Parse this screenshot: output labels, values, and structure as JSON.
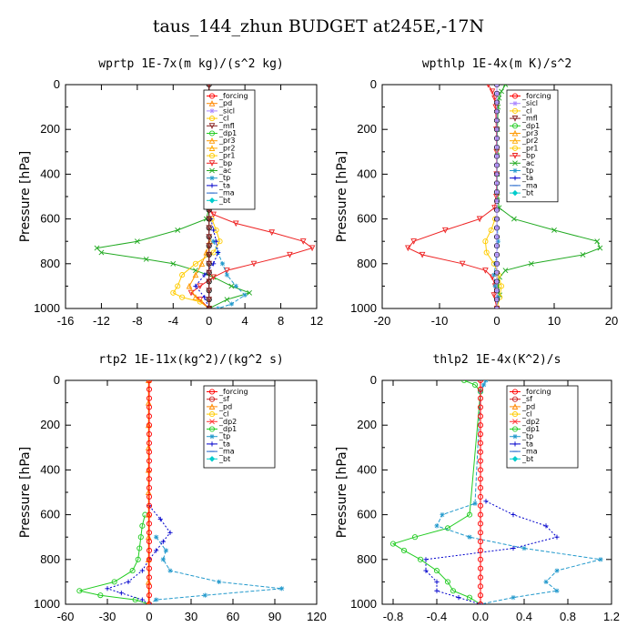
{
  "title": "taus_144_zhun  BUDGET at245E,-17N",
  "chart_data": [
    {
      "type": "line",
      "title": "wprtp  1E-7x(m kg)/(s^2 kg)",
      "ylabel": "Pressure [hPa]",
      "xlim": [
        -16,
        12
      ],
      "xticks": [
        "-16",
        "-12",
        "-8",
        "-4",
        "0",
        "4",
        "8",
        "12"
      ],
      "ylim": [
        1000,
        0
      ],
      "yticks": [
        "0",
        "200",
        "400",
        "600",
        "800",
        "1000"
      ],
      "legend": [
        "_forcing",
        "_pd",
        "_sicl",
        "_cl",
        "_mfl",
        "_dp1",
        "_pr3",
        "_pr2",
        "_pr1",
        "_bp",
        "_ac",
        "_tp",
        "_ta",
        "_ma",
        "_bt"
      ],
      "series": [
        {
          "name": "_ac",
          "color": "#22aa22",
          "marker": "x",
          "dash": "",
          "p": [
            550,
            600,
            650,
            700,
            730,
            750,
            780,
            800,
            830,
            860,
            900,
            930,
            960,
            1000
          ],
          "x": [
            0,
            -0.3,
            -3.5,
            -8,
            -12.5,
            -12,
            -7,
            -4,
            -1.5,
            0.5,
            2.5,
            4.5,
            2,
            0
          ]
        },
        {
          "name": "_bp",
          "color": "#ee2222",
          "marker": "v",
          "dash": "",
          "p": [
            550,
            580,
            620,
            660,
            700,
            730,
            760,
            800,
            830,
            860,
            900,
            930,
            960,
            1000
          ],
          "x": [
            0,
            0.5,
            3,
            7,
            10.5,
            11.5,
            9,
            5,
            2,
            0.5,
            -1,
            -2,
            -1,
            0
          ]
        },
        {
          "name": "_pr1",
          "color": "#ffcc00",
          "marker": "o",
          "dash": "",
          "p": [
            600,
            650,
            700,
            750,
            800,
            850,
            900,
            930,
            950,
            970,
            1000
          ],
          "x": [
            0.3,
            0.8,
            1.2,
            0.5,
            -1.5,
            -3,
            -3.5,
            -4,
            -3,
            -1,
            0
          ]
        },
        {
          "name": "_pr3",
          "color": "#ff9900",
          "marker": "^",
          "dash": "",
          "p": [
            700,
            750,
            800,
            850,
            900,
            950,
            1000
          ],
          "x": [
            0.1,
            -0.3,
            -0.8,
            -1.5,
            -2.2,
            -1.5,
            0
          ]
        },
        {
          "name": "_tp",
          "color": "#2299cc",
          "marker": "*",
          "dash": "4,2",
          "p": [
            700,
            750,
            800,
            850,
            900,
            940,
            980,
            1000
          ],
          "x": [
            0.5,
            1,
            1.5,
            2,
            3,
            4,
            2.5,
            1
          ]
        },
        {
          "name": "_ta",
          "color": "#0000cc",
          "marker": "+",
          "dash": "2,2",
          "p": [
            600,
            650,
            700,
            750,
            800,
            850,
            900,
            950,
            1000
          ],
          "x": [
            0.2,
            0.5,
            0.8,
            1,
            0.5,
            -0.5,
            -1.5,
            -0.5,
            0
          ]
        },
        {
          "name": "_forcing",
          "color": "#000000",
          "marker": "o",
          "dash": "",
          "p": [
            0,
            40,
            80,
            120,
            160,
            200,
            240,
            280,
            320,
            360,
            400,
            440,
            480,
            520,
            560,
            600,
            640,
            680,
            720,
            760,
            800,
            840,
            880,
            920,
            960,
            1000
          ],
          "x": [
            0,
            0,
            0,
            0,
            0,
            0,
            0,
            0,
            0,
            0,
            0,
            0,
            0,
            0,
            0,
            0,
            0,
            0,
            0,
            0,
            0,
            0,
            0,
            0,
            0,
            0
          ]
        },
        {
          "name": "_mfl",
          "color": "#882222",
          "marker": "v",
          "dash": "",
          "p": [
            0,
            40,
            80,
            120,
            160,
            200,
            240,
            280,
            320,
            360,
            400,
            440,
            480,
            520,
            560,
            600,
            640,
            680,
            720,
            760,
            800,
            840,
            880,
            920,
            960,
            1000
          ],
          "x": [
            0,
            0,
            0,
            0,
            0,
            0,
            0,
            0,
            0,
            0,
            0,
            0,
            0,
            0,
            0,
            0,
            0,
            0,
            0,
            0,
            0,
            0,
            0,
            0,
            0,
            0
          ]
        }
      ]
    },
    {
      "type": "line",
      "title": "wpthlp  1E-4x(m K)/s^2",
      "ylabel": "Pressure [hPa]",
      "xlim": [
        -20,
        20
      ],
      "xticks": [
        "-20",
        "-10",
        "0",
        "10",
        "20"
      ],
      "ylim": [
        1000,
        0
      ],
      "yticks": [
        "0",
        "200",
        "400",
        "600",
        "800",
        "1000"
      ],
      "legend": [
        "_forcing",
        "_sicl",
        "_cl",
        "_mfl",
        "_dp1",
        "_pr3",
        "_pr2",
        "_pr1",
        "_bp",
        "_ac",
        "_tp",
        "_ta",
        "_ma",
        "_bt"
      ],
      "series": [
        {
          "name": "_ac",
          "color": "#22aa22",
          "marker": "x",
          "dash": "",
          "p": [
            0,
            30,
            60,
            100,
            200,
            300,
            400,
            500,
            550,
            600,
            650,
            700,
            730,
            760,
            800,
            830,
            860,
            900,
            940,
            1000
          ],
          "x": [
            1.5,
            0.8,
            0.4,
            0.2,
            0.1,
            0.05,
            0.05,
            0.1,
            0.4,
            3,
            10,
            17.5,
            18,
            15,
            6,
            1.5,
            0.5,
            0.2,
            0.5,
            0
          ]
        },
        {
          "name": "_bp",
          "color": "#ee2222",
          "marker": "v",
          "dash": "",
          "p": [
            0,
            30,
            60,
            100,
            200,
            300,
            400,
            500,
            550,
            600,
            650,
            700,
            730,
            760,
            800,
            830,
            860,
            900,
            940,
            1000
          ],
          "x": [
            -1.5,
            -0.8,
            -0.4,
            -0.2,
            -0.1,
            -0.05,
            -0.05,
            -0.1,
            -0.4,
            -3,
            -9,
            -14.5,
            -15.5,
            -13,
            -6,
            -2,
            -0.8,
            -0.3,
            -0.5,
            0
          ]
        },
        {
          "name": "_pr1",
          "color": "#ffcc00",
          "marker": "o",
          "dash": "",
          "p": [
            600,
            650,
            700,
            750,
            800,
            850,
            900,
            950,
            1000
          ],
          "x": [
            -0.3,
            -1,
            -2,
            -1.8,
            -0.5,
            0.3,
            0.8,
            0.5,
            0
          ]
        },
        {
          "name": "_tp",
          "color": "#2299cc",
          "marker": "*",
          "dash": "4,2",
          "p": [
            600,
            700,
            800,
            850,
            900,
            950,
            1000
          ],
          "x": [
            0,
            0.2,
            -0.2,
            -0.5,
            -0.3,
            0.2,
            0
          ]
        },
        {
          "name": "_forcing",
          "color": "#000000",
          "marker": "o",
          "dash": "",
          "p": [
            0,
            40,
            80,
            120,
            160,
            200,
            240,
            280,
            320,
            360,
            400,
            440,
            480,
            520,
            560,
            600,
            640,
            680,
            720,
            760,
            800,
            840,
            880,
            920,
            960,
            1000
          ],
          "x": [
            0,
            0,
            0,
            0,
            0,
            0,
            0,
            0,
            0,
            0,
            0,
            0,
            0,
            0,
            0,
            0,
            0,
            0,
            0,
            0,
            0,
            0,
            0,
            0,
            0,
            0
          ]
        },
        {
          "name": "_sicl",
          "color": "#aa88ff",
          "marker": "*",
          "dash": "",
          "p": [
            0,
            40,
            80,
            120,
            160,
            200,
            240,
            280,
            320,
            360,
            400,
            440,
            480,
            520,
            560,
            600,
            640,
            680,
            720,
            760,
            800,
            840,
            880,
            920,
            960,
            1000
          ],
          "x": [
            0,
            0,
            0,
            0,
            0,
            0,
            0,
            0,
            0,
            0,
            0,
            0,
            0,
            0,
            0,
            0,
            0,
            0,
            0,
            0,
            0,
            0,
            0,
            0,
            0,
            0
          ]
        }
      ]
    },
    {
      "type": "line",
      "title": "rtp2  1E-11x(kg^2)/(kg^2 s)",
      "ylabel": "Pressure [hPa]",
      "xlim": [
        -60,
        120
      ],
      "xticks": [
        "-60",
        "-30",
        "0",
        "30",
        "60",
        "90",
        "120"
      ],
      "ylim": [
        1000,
        0
      ],
      "yticks": [
        "0",
        "200",
        "400",
        "600",
        "800",
        "1000"
      ],
      "legend": [
        "_forcing",
        "_sf",
        "_pd",
        "_cl",
        "_dp2",
        "_dp1",
        "_tp",
        "_ta",
        "_ma",
        "_bt"
      ],
      "series": [
        {
          "name": "_dp1",
          "color": "#22cc22",
          "marker": "o",
          "dash": "",
          "p": [
            600,
            650,
            700,
            750,
            800,
            850,
            900,
            940,
            960,
            980,
            1000
          ],
          "x": [
            -3,
            -5,
            -6,
            -7,
            -8,
            -12,
            -25,
            -50,
            -35,
            -10,
            0
          ]
        },
        {
          "name": "_tp",
          "color": "#2299cc",
          "marker": "*",
          "dash": "4,2",
          "p": [
            700,
            760,
            800,
            850,
            900,
            930,
            960,
            980,
            1000
          ],
          "x": [
            5,
            12,
            10,
            15,
            50,
            95,
            40,
            5,
            0
          ]
        },
        {
          "name": "_ta",
          "color": "#0000cc",
          "marker": "+",
          "dash": "2,2",
          "p": [
            560,
            620,
            680,
            720,
            760,
            800,
            850,
            900,
            930,
            950,
            980,
            1000
          ],
          "x": [
            0,
            8,
            15,
            10,
            5,
            0,
            -5,
            -15,
            -30,
            -20,
            -5,
            0
          ]
        },
        {
          "name": "_pd",
          "color": "#ff8800",
          "marker": "^",
          "dash": "",
          "p": [
            0,
            100,
            200,
            300,
            400,
            500,
            600,
            700,
            800,
            900,
            1000
          ],
          "x": [
            -0.5,
            -0.5,
            -0.5,
            -0.5,
            -0.5,
            -0.5,
            -0.5,
            -0.5,
            -0.5,
            -0.5,
            -0.5
          ]
        },
        {
          "name": "_forcing",
          "color": "#ff0000",
          "marker": "o",
          "dash": "",
          "p": [
            0,
            40,
            80,
            120,
            160,
            200,
            240,
            280,
            320,
            360,
            400,
            440,
            480,
            520,
            560,
            600,
            640,
            680,
            720,
            760,
            800,
            840,
            880,
            920,
            960,
            1000
          ],
          "x": [
            0,
            0,
            0,
            0,
            0,
            0,
            0,
            0,
            0,
            0,
            0,
            0,
            0,
            0,
            0,
            0,
            0,
            0,
            0,
            0,
            0,
            0,
            0,
            0,
            0,
            0
          ]
        }
      ]
    },
    {
      "type": "line",
      "title": "thlp2  1E-4x(K^2)/s",
      "ylabel": "Pressure [hPa]",
      "xlim": [
        -0.9,
        1.2
      ],
      "xticks": [
        "-0.8",
        "-0.4",
        "0.0",
        "0.4",
        "0.8",
        "1.2"
      ],
      "ylim": [
        1000,
        0
      ],
      "yticks": [
        "0",
        "200",
        "400",
        "600",
        "800",
        "1000"
      ],
      "legend": [
        "_forcing",
        "_sf",
        "_pd",
        "_cl",
        "_dp2",
        "_dp1",
        "_tp",
        "_ta",
        "_ma",
        "_bt"
      ],
      "series": [
        {
          "name": "_dp1",
          "color": "#22cc22",
          "marker": "o",
          "dash": "",
          "p": [
            0,
            20,
            50,
            600,
            660,
            700,
            730,
            760,
            800,
            850,
            900,
            940,
            970,
            1000
          ],
          "x": [
            -0.15,
            -0.05,
            0,
            -0.1,
            -0.3,
            -0.6,
            -0.8,
            -0.7,
            -0.55,
            -0.4,
            -0.3,
            -0.25,
            -0.1,
            0
          ]
        },
        {
          "name": "_tp",
          "color": "#2299cc",
          "marker": "*",
          "dash": "4,2",
          "p": [
            0,
            20,
            50,
            550,
            600,
            650,
            700,
            750,
            800,
            850,
            900,
            940,
            970,
            1000
          ],
          "x": [
            0.05,
            0.03,
            0,
            -0.05,
            -0.35,
            -0.4,
            -0.1,
            0.4,
            1.1,
            0.7,
            0.6,
            0.7,
            0.3,
            0
          ]
        },
        {
          "name": "_ta",
          "color": "#0000cc",
          "marker": "+",
          "dash": "2,2",
          "p": [
            540,
            600,
            650,
            700,
            750,
            800,
            850,
            900,
            940,
            970,
            1000
          ],
          "x": [
            0.05,
            0.3,
            0.6,
            0.7,
            0.3,
            -0.5,
            -0.5,
            -0.4,
            -0.4,
            -0.2,
            0
          ]
        },
        {
          "name": "_forcing",
          "color": "#ff0000",
          "marker": "o",
          "dash": "",
          "p": [
            0,
            40,
            80,
            120,
            160,
            200,
            240,
            280,
            320,
            360,
            400,
            440,
            480,
            520,
            560,
            600,
            640,
            680,
            720,
            760,
            800,
            840,
            880,
            920,
            960,
            1000
          ],
          "x": [
            0,
            0,
            0,
            0,
            0,
            0,
            0,
            0,
            0,
            0,
            0,
            0,
            0,
            0,
            0,
            0,
            0,
            0,
            0,
            0,
            0,
            0,
            0,
            0,
            0,
            0
          ]
        }
      ]
    }
  ],
  "legend_styles": {
    "_forcing": {
      "color": "#ff0000",
      "marker": "o"
    },
    "_sf": {
      "color": "#cc2222",
      "marker": "o"
    },
    "_pd": {
      "color": "#ff8800",
      "marker": "^"
    },
    "_sicl": {
      "color": "#aa88ff",
      "marker": "*"
    },
    "_cl": {
      "color": "#ffcc00",
      "marker": "o"
    },
    "_mfl": {
      "color": "#882222",
      "marker": "v"
    },
    "_dp1": {
      "color": "#22cc22",
      "marker": "o"
    },
    "_dp2": {
      "color": "#ff3333",
      "marker": "x"
    },
    "_pr3": {
      "color": "#ff9900",
      "marker": "^"
    },
    "_pr2": {
      "color": "#ffaa00",
      "marker": "^"
    },
    "_pr1": {
      "color": "#ffcc00",
      "marker": "o"
    },
    "_bp": {
      "color": "#ee2222",
      "marker": "v"
    },
    "_ac": {
      "color": "#22aa22",
      "marker": "x"
    },
    "_tp": {
      "color": "#2299cc",
      "marker": "*"
    },
    "_ta": {
      "color": "#0000cc",
      "marker": "+"
    },
    "_ma": {
      "color": "#2266cc",
      "marker": "-"
    },
    "_bt": {
      "color": "#00cccc",
      "marker": "d"
    }
  }
}
